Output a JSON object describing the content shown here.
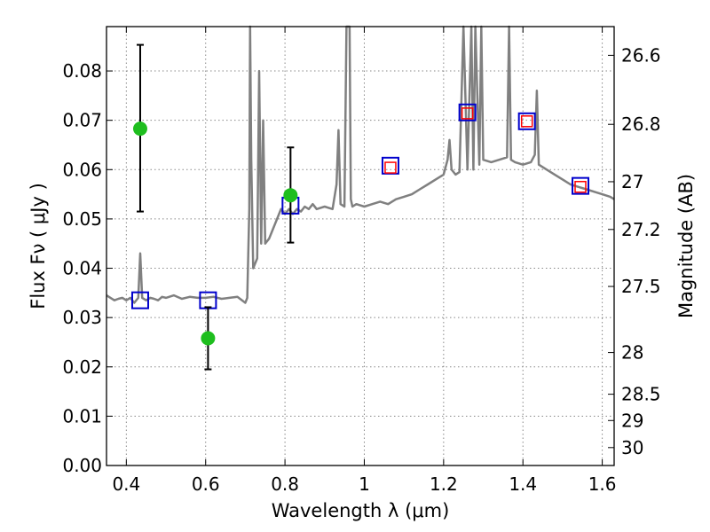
{
  "chart_data": {
    "type": "scatter",
    "xlabel": "Wavelength  λ (μm)",
    "ylabel": "Flux  Fν  ( μJy )",
    "y2label": "Magnitude (AB)",
    "xlim": [
      0.35,
      1.63
    ],
    "ylim": [
      0.0,
      0.089
    ],
    "grid": true,
    "x_ticks": [
      0.4,
      0.6,
      0.8,
      1.0,
      1.2,
      1.4,
      1.6
    ],
    "x_tick_labels": [
      "0.4",
      "0.6",
      "0.8",
      "1",
      "1.2",
      "1.4",
      "1.6"
    ],
    "y_ticks": [
      0.0,
      0.01,
      0.02,
      0.03,
      0.04,
      0.05,
      0.06,
      0.07,
      0.08
    ],
    "y_tick_labels": [
      "0.00",
      "0.01",
      "0.02",
      "0.03",
      "0.04",
      "0.05",
      "0.06",
      "0.07",
      "0.08"
    ],
    "y2_ticks": [
      26.6,
      26.8,
      27.0,
      27.2,
      27.5,
      28.0,
      28.5,
      29.0,
      30.0
    ],
    "y2_tick_labels": [
      "26.6",
      "26.8",
      "27",
      "27.2",
      "27.5",
      "28",
      "28.5",
      "29",
      "30"
    ],
    "colors": {
      "spectrum": "#808080",
      "observed": "#1ebe1e",
      "model_blue": "#0000cc",
      "model_red": "#ff0000",
      "error_bar": "#000000",
      "grid": "#888888"
    },
    "spectrum": {
      "x": [
        0.35,
        0.36,
        0.37,
        0.38,
        0.39,
        0.4,
        0.41,
        0.42,
        0.43,
        0.435,
        0.44,
        0.45,
        0.46,
        0.47,
        0.48,
        0.49,
        0.5,
        0.52,
        0.54,
        0.56,
        0.58,
        0.6,
        0.62,
        0.64,
        0.66,
        0.68,
        0.7,
        0.705,
        0.71,
        0.712,
        0.715,
        0.72,
        0.73,
        0.735,
        0.74,
        0.745,
        0.75,
        0.76,
        0.77,
        0.78,
        0.79,
        0.8,
        0.81,
        0.82,
        0.83,
        0.84,
        0.85,
        0.86,
        0.87,
        0.88,
        0.9,
        0.92,
        0.93,
        0.935,
        0.94,
        0.95,
        0.955,
        0.96,
        0.963,
        0.966,
        0.97,
        0.98,
        1.0,
        1.02,
        1.04,
        1.06,
        1.08,
        1.1,
        1.12,
        1.14,
        1.16,
        1.18,
        1.2,
        1.21,
        1.215,
        1.22,
        1.23,
        1.24,
        1.25,
        1.26,
        1.27,
        1.275,
        1.28,
        1.29,
        1.295,
        1.3,
        1.32,
        1.34,
        1.36,
        1.365,
        1.37,
        1.38,
        1.4,
        1.42,
        1.43,
        1.435,
        1.44,
        1.46,
        1.48,
        1.5,
        1.52,
        1.54,
        1.56,
        1.58,
        1.6,
        1.62,
        1.63
      ],
      "y": [
        0.0345,
        0.034,
        0.0335,
        0.0338,
        0.034,
        0.0335,
        0.034,
        0.033,
        0.034,
        0.043,
        0.034,
        0.0335,
        0.034,
        0.0338,
        0.0335,
        0.0342,
        0.034,
        0.0345,
        0.0338,
        0.0342,
        0.034,
        0.034,
        0.0342,
        0.0338,
        0.034,
        0.0342,
        0.033,
        0.034,
        0.052,
        0.089,
        0.062,
        0.04,
        0.042,
        0.08,
        0.045,
        0.07,
        0.045,
        0.046,
        0.048,
        0.05,
        0.052,
        0.051,
        0.052,
        0.051,
        0.052,
        0.0515,
        0.0525,
        0.052,
        0.053,
        0.052,
        0.0525,
        0.052,
        0.057,
        0.068,
        0.053,
        0.0525,
        0.089,
        0.089,
        0.089,
        0.054,
        0.0525,
        0.053,
        0.0525,
        0.053,
        0.0535,
        0.053,
        0.054,
        0.0545,
        0.055,
        0.056,
        0.057,
        0.058,
        0.059,
        0.062,
        0.066,
        0.06,
        0.059,
        0.0595,
        0.089,
        0.06,
        0.089,
        0.06,
        0.089,
        0.061,
        0.089,
        0.062,
        0.0615,
        0.062,
        0.0625,
        0.089,
        0.062,
        0.0615,
        0.061,
        0.0615,
        0.063,
        0.076,
        0.061,
        0.06,
        0.059,
        0.058,
        0.057,
        0.0565,
        0.056,
        0.0555,
        0.055,
        0.0545,
        0.054
      ]
    },
    "observed_points": [
      {
        "x": 0.435,
        "y": 0.0683,
        "err_low": 0.0515,
        "err_high": 0.0853
      },
      {
        "x": 0.606,
        "y": 0.0258,
        "err_low": 0.0195,
        "err_high": 0.0321
      },
      {
        "x": 0.814,
        "y": 0.0548,
        "err_low": 0.0452,
        "err_high": 0.0645
      }
    ],
    "model_blue_points": [
      {
        "x": 0.435,
        "y": 0.0335
      },
      {
        "x": 0.606,
        "y": 0.0335
      },
      {
        "x": 0.814,
        "y": 0.0527
      },
      {
        "x": 1.066,
        "y": 0.0608
      },
      {
        "x": 1.26,
        "y": 0.0716
      },
      {
        "x": 1.41,
        "y": 0.0698
      },
      {
        "x": 1.545,
        "y": 0.0567
      }
    ],
    "model_red_points": [
      {
        "x": 1.066,
        "y": 0.0604
      },
      {
        "x": 1.26,
        "y": 0.0714
      },
      {
        "x": 1.41,
        "y": 0.0698
      },
      {
        "x": 1.545,
        "y": 0.0565
      }
    ]
  }
}
